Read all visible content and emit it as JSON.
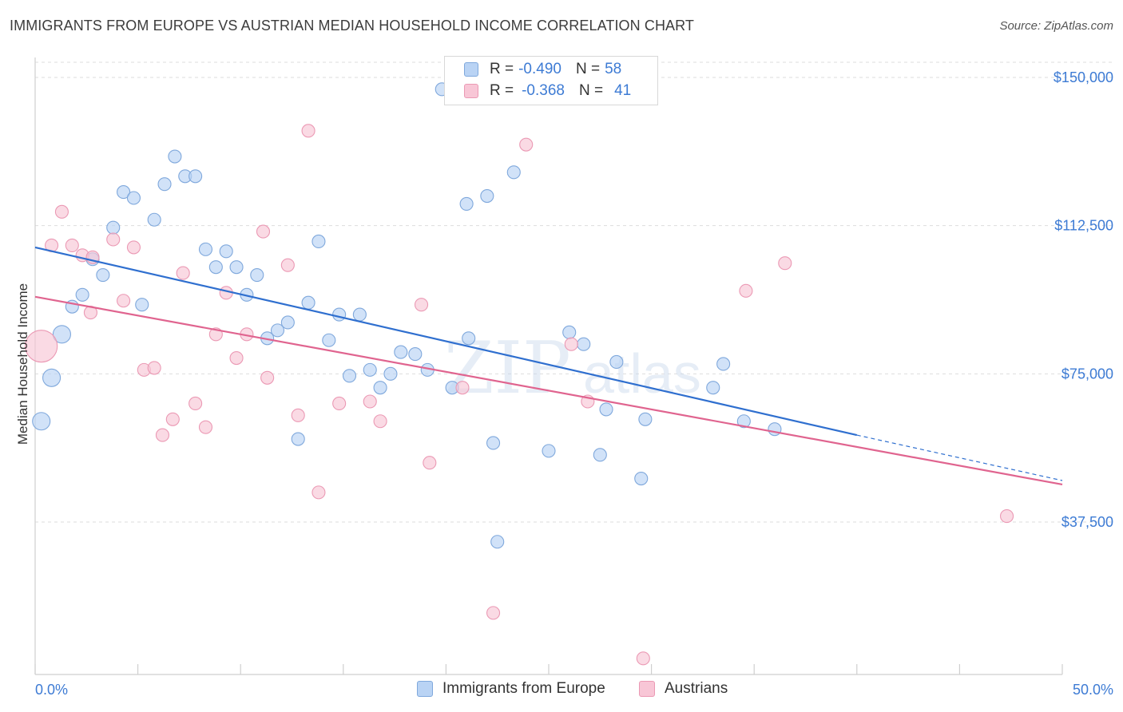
{
  "header": {
    "title": "IMMIGRANTS FROM EUROPE VS AUSTRIAN MEDIAN HOUSEHOLD INCOME CORRELATION CHART",
    "source": "Source: ZipAtlas.com"
  },
  "legend": {
    "series1": {
      "r_label": "R =",
      "r_value": "-0.490",
      "n_label": "N =",
      "n_value": "58"
    },
    "series2": {
      "r_label": "R =",
      "r_value": "-0.368",
      "n_label": "N =",
      "n_value": "41"
    }
  },
  "watermark": {
    "zip": "ZIP",
    "atlas": "atlas"
  },
  "colors": {
    "blue_fill": "#b9d3f4",
    "blue_stroke": "#7fa8dc",
    "blue_line": "#2f6fcf",
    "pink_fill": "#f8c6d6",
    "pink_stroke": "#eb99b4",
    "pink_line": "#e0648f",
    "accent_text": "#3d7bd4"
  },
  "chart_data": {
    "type": "scatter",
    "title": "IMMIGRANTS FROM EUROPE VS AUSTRIAN MEDIAN HOUSEHOLD INCOME CORRELATION CHART",
    "xlabel": "",
    "ylabel": "Median Household Income",
    "xlim": [
      0,
      50
    ],
    "ylim": [
      0,
      155000
    ],
    "x_tick_labels": [
      "0.0%",
      "50.0%"
    ],
    "y_ticks": [
      37500,
      75000,
      112500,
      150000
    ],
    "y_tick_labels": [
      "$37,500",
      "$75,000",
      "$112,500",
      "$150,000"
    ],
    "series": [
      {
        "name": "Immigrants from Europe",
        "color": "blue",
        "points": [
          [
            0.3,
            63000
          ],
          [
            0.8,
            74000
          ],
          [
            1.3,
            85000
          ],
          [
            1.8,
            92000
          ],
          [
            2.3,
            95000
          ],
          [
            2.8,
            104000
          ],
          [
            3.3,
            100000
          ],
          [
            3.8,
            112000
          ],
          [
            4.3,
            121000
          ],
          [
            4.8,
            119500
          ],
          [
            5.2,
            92500
          ],
          [
            5.8,
            114000
          ],
          [
            6.3,
            123000
          ],
          [
            6.8,
            130000
          ],
          [
            7.3,
            125000
          ],
          [
            7.8,
            125000
          ],
          [
            8.3,
            106500
          ],
          [
            8.8,
            102000
          ],
          [
            9.3,
            106000
          ],
          [
            9.8,
            102000
          ],
          [
            10.3,
            95000
          ],
          [
            10.8,
            100000
          ],
          [
            11.3,
            84000
          ],
          [
            11.8,
            86000
          ],
          [
            12.3,
            88000
          ],
          [
            12.8,
            58500
          ],
          [
            13.3,
            93000
          ],
          [
            13.8,
            108500
          ],
          [
            14.3,
            83500
          ],
          [
            14.8,
            90000
          ],
          [
            15.3,
            74500
          ],
          [
            15.8,
            90000
          ],
          [
            16.3,
            76000
          ],
          [
            16.8,
            71500
          ],
          [
            17.3,
            75000
          ],
          [
            17.8,
            80500
          ],
          [
            18.5,
            80000
          ],
          [
            19.1,
            76000
          ],
          [
            19.8,
            147000
          ],
          [
            20.3,
            71500
          ],
          [
            21.1,
            84000
          ],
          [
            21.0,
            118000
          ],
          [
            22.0,
            120000
          ],
          [
            22.3,
            57500
          ],
          [
            22.5,
            32500
          ],
          [
            23.3,
            126000
          ],
          [
            25.0,
            55500
          ],
          [
            26.0,
            85500
          ],
          [
            26.7,
            82500
          ],
          [
            27.5,
            54500
          ],
          [
            27.8,
            66000
          ],
          [
            28.3,
            78000
          ],
          [
            29.5,
            48500
          ],
          [
            29.7,
            63500
          ],
          [
            33.0,
            71500
          ],
          [
            33.5,
            77500
          ],
          [
            34.5,
            63000
          ],
          [
            36.0,
            61000
          ]
        ]
      },
      {
        "name": "Austrians",
        "color": "pink",
        "points": [
          [
            0.3,
            82000
          ],
          [
            0.8,
            107500
          ],
          [
            1.3,
            116000
          ],
          [
            1.8,
            107500
          ],
          [
            2.3,
            105000
          ],
          [
            2.8,
            104500
          ],
          [
            2.7,
            90500
          ],
          [
            3.8,
            109000
          ],
          [
            4.3,
            93500
          ],
          [
            4.8,
            107000
          ],
          [
            5.3,
            76000
          ],
          [
            5.8,
            76500
          ],
          [
            6.2,
            59500
          ],
          [
            6.7,
            63500
          ],
          [
            7.2,
            100500
          ],
          [
            7.8,
            67500
          ],
          [
            8.3,
            61500
          ],
          [
            8.8,
            85000
          ],
          [
            9.3,
            95500
          ],
          [
            9.8,
            79000
          ],
          [
            10.3,
            85000
          ],
          [
            11.1,
            111000
          ],
          [
            11.3,
            74000
          ],
          [
            12.3,
            102500
          ],
          [
            12.8,
            64500
          ],
          [
            13.3,
            136500
          ],
          [
            13.8,
            45000
          ],
          [
            14.8,
            67500
          ],
          [
            16.3,
            68000
          ],
          [
            16.8,
            63000
          ],
          [
            18.8,
            92500
          ],
          [
            19.2,
            52500
          ],
          [
            20.8,
            71500
          ],
          [
            22.3,
            14500
          ],
          [
            23.9,
            133000
          ],
          [
            26.1,
            82500
          ],
          [
            26.9,
            68000
          ],
          [
            29.6,
            3000
          ],
          [
            34.6,
            96000
          ],
          [
            36.5,
            103000
          ],
          [
            47.3,
            39000
          ]
        ]
      }
    ],
    "trendlines": [
      {
        "series": "Immigrants from Europe",
        "x": [
          0,
          40
        ],
        "y": [
          107000,
          59500
        ],
        "dashed_extension_to_x": 50,
        "dashed_extension_y": 48000
      },
      {
        "series": "Austrians",
        "x": [
          0,
          50
        ],
        "y": [
          94500,
          47000
        ]
      }
    ],
    "legend_position": "top-center",
    "grid": true
  },
  "bottom_legend": {
    "series1_label": "Immigrants from Europe",
    "series2_label": "Austrians"
  }
}
